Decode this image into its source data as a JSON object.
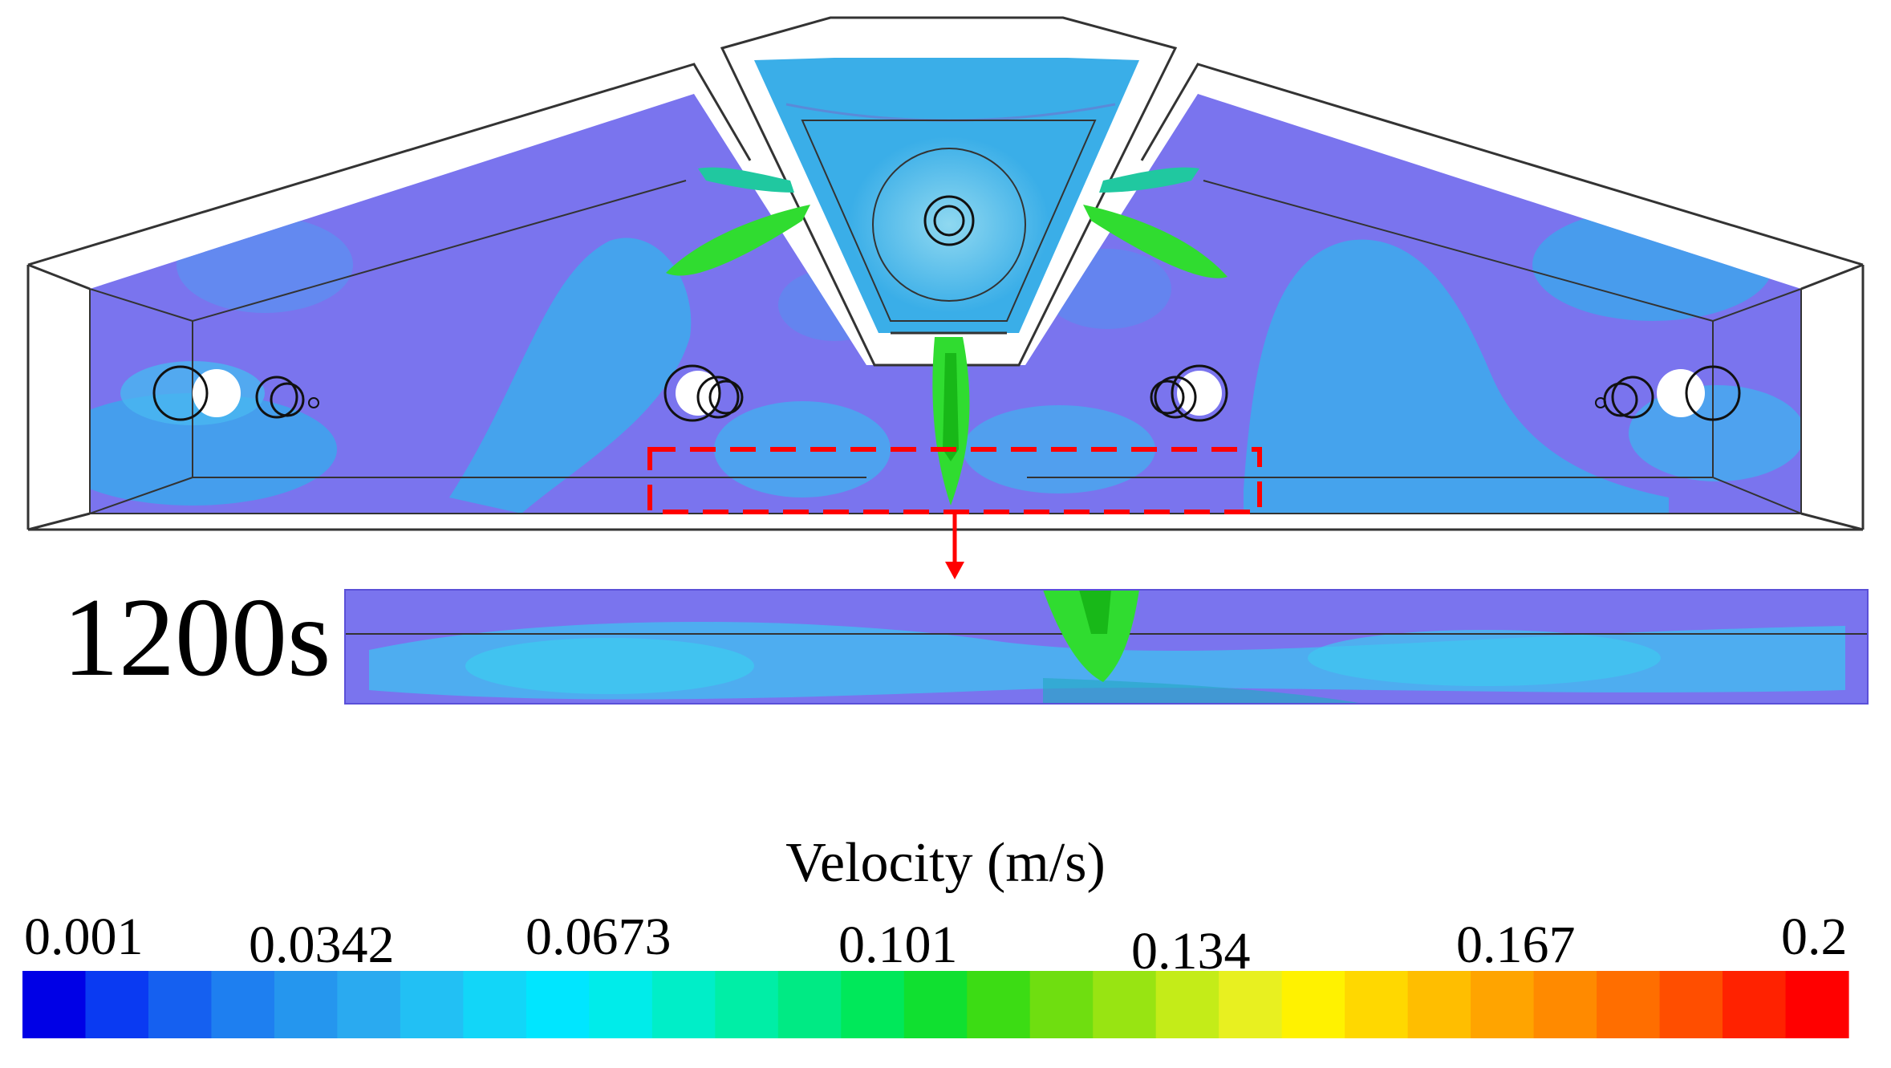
{
  "time_label": "1200s",
  "colorbar": {
    "title": "Velocity (m/s)",
    "ticks": [
      "0.001",
      "0.0342",
      "0.0673",
      "0.101",
      "0.134",
      "0.167",
      "0.2"
    ],
    "min": 0.001,
    "max": 0.2,
    "colors": [
      "#0000e6",
      "#0a3af2",
      "#1560f0",
      "#1e7ff0",
      "#2596ee",
      "#2aaaf0",
      "#22c0f4",
      "#12d6f8",
      "#00e6ff",
      "#00ecea",
      "#00eec8",
      "#00eea6",
      "#00ea84",
      "#00e85a",
      "#10e030",
      "#3cdc14",
      "#6fde10",
      "#98e412",
      "#c4ec18",
      "#e8f020",
      "#fff200",
      "#ffd800",
      "#ffbe00",
      "#ffa400",
      "#ff8a00",
      "#ff6e00",
      "#ff4e00",
      "#ff2200",
      "#ff0000"
    ]
  },
  "colors": {
    "annotation": "#ff0000",
    "field_low": "#7a74ee",
    "field_mid": "#40b0ee",
    "jet": "#30e030"
  }
}
